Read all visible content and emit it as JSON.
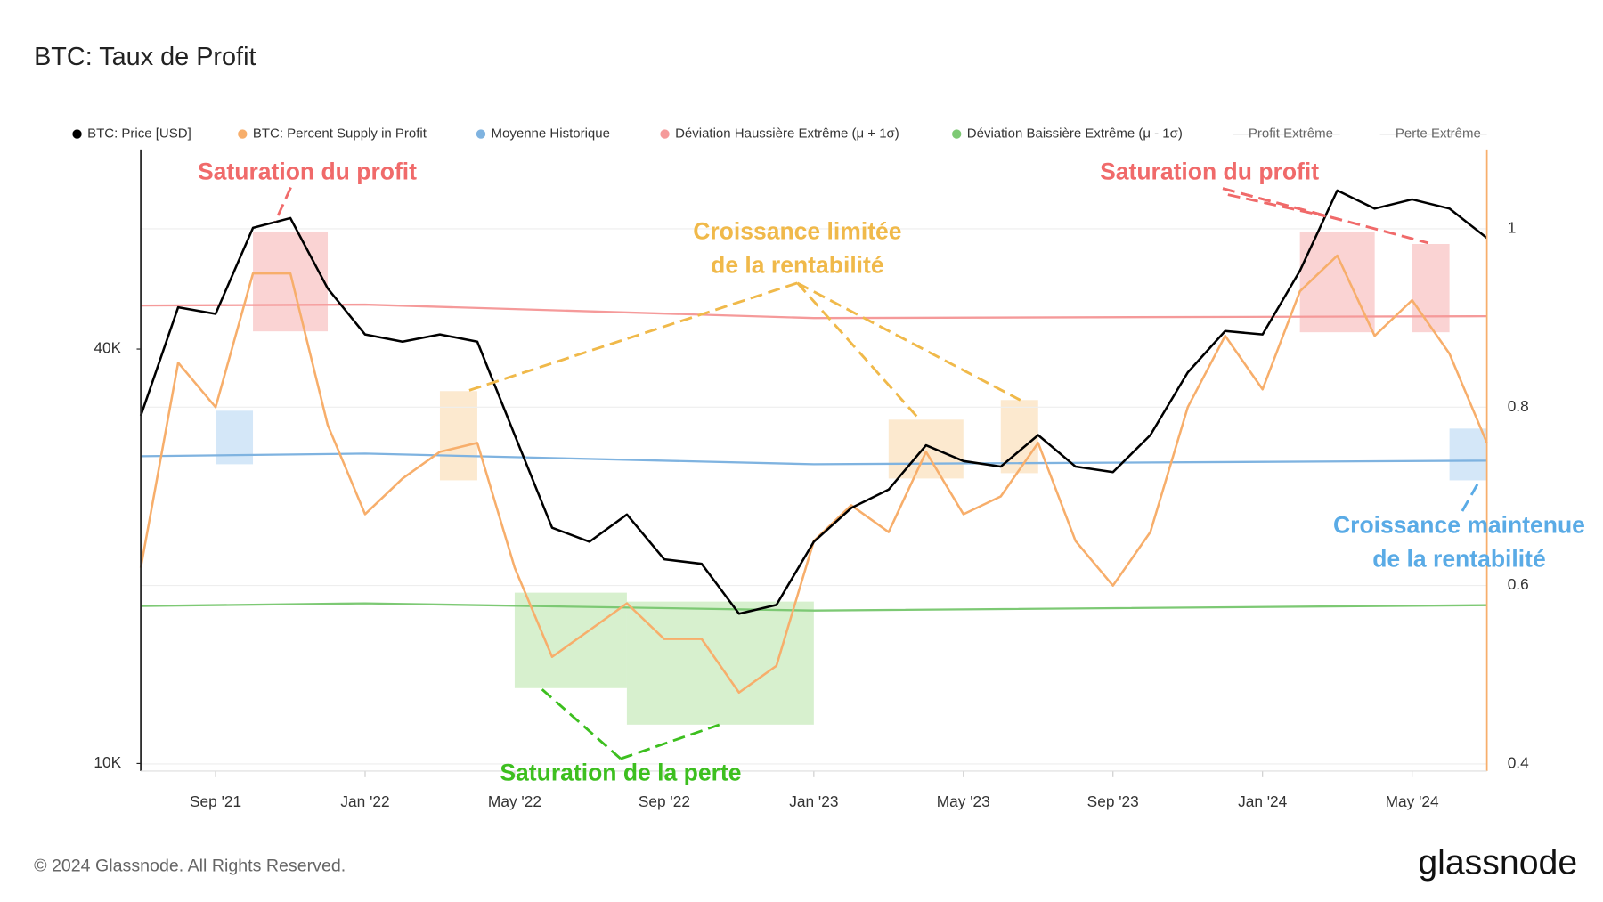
{
  "chart_data": {
    "type": "line",
    "title": "BTC: Taux de Profit",
    "footer": "© 2024 Glassnode. All Rights Reserved.",
    "brand": "glassnode",
    "x": [
      "2021-07",
      "2021-08",
      "2021-09",
      "2021-10",
      "2021-11",
      "2021-12",
      "2022-01",
      "2022-02",
      "2022-03",
      "2022-04",
      "2022-05",
      "2022-06",
      "2022-07",
      "2022-08",
      "2022-09",
      "2022-10",
      "2022-11",
      "2022-12",
      "2023-01",
      "2023-02",
      "2023-03",
      "2023-04",
      "2023-05",
      "2023-06",
      "2023-07",
      "2023-08",
      "2023-09",
      "2023-10",
      "2023-11",
      "2023-12",
      "2024-01",
      "2024-02",
      "2024-03",
      "2024-04",
      "2024-05",
      "2024-06",
      "2024-07"
    ],
    "xlim": [
      "2021-07",
      "2024-07"
    ],
    "xticks": [
      {
        "value": "2021-09",
        "label": "Sep '21"
      },
      {
        "value": "2022-01",
        "label": "Jan '22"
      },
      {
        "value": "2022-05",
        "label": "May '22"
      },
      {
        "value": "2022-09",
        "label": "Sep '22"
      },
      {
        "value": "2023-01",
        "label": "Jan '23"
      },
      {
        "value": "2023-05",
        "label": "May '23"
      },
      {
        "value": "2023-09",
        "label": "Sep '23"
      },
      {
        "value": "2024-01",
        "label": "Jan '24"
      },
      {
        "value": "2024-05",
        "label": "May '24"
      }
    ],
    "ylim": [
      9750,
      78000
    ],
    "log_scale": true,
    "yticks": [
      {
        "value": 10000,
        "label": "10K"
      },
      {
        "value": 40000,
        "label": "40K"
      }
    ],
    "y2lim": [
      0.392,
      1.089
    ],
    "y2ticks": [
      0.4,
      0.6,
      0.8,
      1
    ],
    "grid": true,
    "series": [
      {
        "name": "BTC: Price [USD]",
        "color": "#000000",
        "axis": "y",
        "values": [
          32000,
          46000,
          45000,
          60000,
          62000,
          49000,
          42000,
          41000,
          42000,
          41000,
          30000,
          22000,
          21000,
          23000,
          19800,
          19500,
          16500,
          17000,
          21000,
          23500,
          25000,
          29000,
          27500,
          27000,
          30000,
          27000,
          26500,
          30000,
          37000,
          42500,
          42000,
          52000,
          68000,
          64000,
          66000,
          64000,
          58000
        ]
      },
      {
        "name": "BTC: Percent Supply in Profit",
        "color": "#f7ae6b",
        "axis": "y2",
        "values": [
          0.62,
          0.85,
          0.8,
          0.95,
          0.95,
          0.78,
          0.68,
          0.72,
          0.75,
          0.76,
          0.62,
          0.52,
          0.55,
          0.58,
          0.54,
          0.54,
          0.48,
          0.51,
          0.65,
          0.69,
          0.66,
          0.75,
          0.68,
          0.7,
          0.76,
          0.65,
          0.6,
          0.66,
          0.8,
          0.88,
          0.82,
          0.93,
          0.97,
          0.88,
          0.92,
          0.86,
          0.76
        ]
      },
      {
        "name": "Moyenne Historique",
        "color": "#7fb3e0",
        "axis": "y2",
        "x": [
          "2021-07",
          "2022-01",
          "2023-01",
          "2024-07"
        ],
        "values": [
          0.745,
          0.748,
          0.736,
          0.74
        ]
      },
      {
        "name": "Déviation Haussière Extrême (μ + 1σ)",
        "color": "#f59a9a",
        "axis": "y2",
        "x": [
          "2021-07",
          "2022-01",
          "2023-01",
          "2024-07"
        ],
        "values": [
          0.914,
          0.915,
          0.9,
          0.902
        ]
      },
      {
        "name": "Déviation Baissière Extrême (μ - 1σ)",
        "color": "#7dc974",
        "axis": "y2",
        "x": [
          "2021-07",
          "2022-01",
          "2023-01",
          "2024-07"
        ],
        "values": [
          0.577,
          0.58,
          0.572,
          0.578
        ]
      },
      {
        "name": "Profit Extrême",
        "color": "#888888",
        "hidden": true
      },
      {
        "name": "Perte Extrême",
        "color": "#888888",
        "hidden": true
      }
    ],
    "highlights": [
      {
        "x": [
          "2021-10",
          "2021-12"
        ],
        "y": [
          0.885,
          0.997
        ],
        "color": "#f8c4c4"
      },
      {
        "x": [
          "2021-09",
          "2021-10"
        ],
        "y": [
          0.736,
          0.796
        ],
        "color": "#c6dff5"
      },
      {
        "x": [
          "2022-03",
          "2022-04"
        ],
        "y": [
          0.718,
          0.818
        ],
        "color": "#fbe2bf"
      },
      {
        "x": [
          "2022-05",
          "2022-08"
        ],
        "y": [
          0.485,
          0.592
        ],
        "color": "#c9ebbd"
      },
      {
        "x": [
          "2022-08",
          "2023-01"
        ],
        "y": [
          0.444,
          0.582
        ],
        "color": "#c9ebbd"
      },
      {
        "x": [
          "2023-03",
          "2023-05"
        ],
        "y": [
          0.72,
          0.786
        ],
        "color": "#fbe2bf"
      },
      {
        "x": [
          "2023-06",
          "2023-07"
        ],
        "y": [
          0.726,
          0.808
        ],
        "color": "#fbe2bf"
      },
      {
        "x": [
          "2024-02",
          "2024-04"
        ],
        "y": [
          0.884,
          0.997
        ],
        "color": "#f8c4c4"
      },
      {
        "x": [
          "2024-05",
          "2024-06"
        ],
        "y": [
          0.884,
          0.983
        ],
        "color": "#f8c4c4"
      },
      {
        "x": [
          "2024-06",
          "2024-07"
        ],
        "y": [
          0.718,
          0.776
        ],
        "color": "#c6dff5"
      }
    ],
    "annotations": [
      {
        "lines": [
          "Saturation du profit"
        ],
        "color": "#f06a6a"
      },
      {
        "lines": [
          "Saturation du profit"
        ],
        "color": "#f06a6a"
      },
      {
        "lines": [
          "Croissance limitée",
          "de la rentabilité"
        ],
        "color": "#f0b94a"
      },
      {
        "lines": [
          "Saturation de la perte"
        ],
        "color": "#3dbf1f"
      },
      {
        "lines": [
          "Croissance maintenue",
          "de la rentabilité"
        ],
        "color": "#5aabe6"
      }
    ]
  }
}
